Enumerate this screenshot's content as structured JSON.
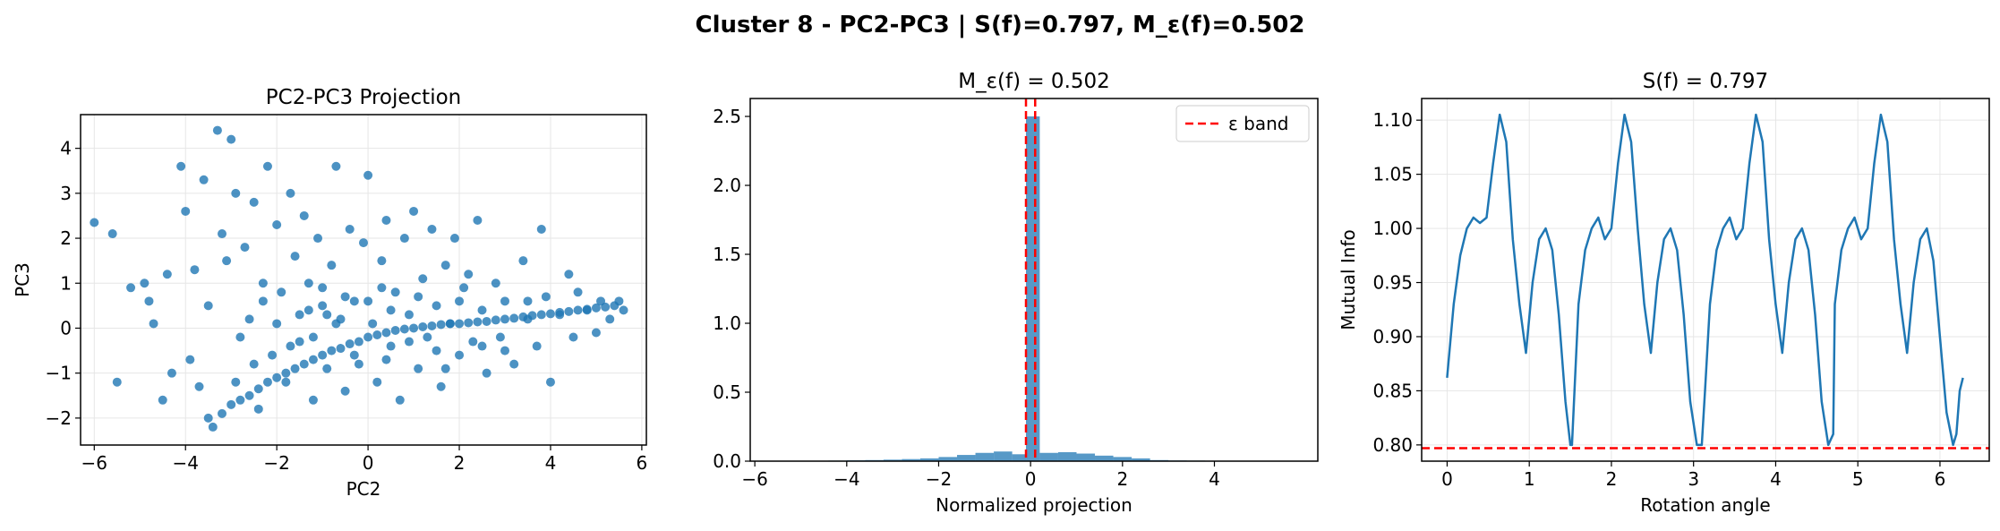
{
  "figure": {
    "suptitle": "Cluster 8 - PC2-PC3 | S(f)=0.797, M_ε(f)=0.502",
    "colors": {
      "primary": "#1f77b4",
      "reference": "#ff0000",
      "grid": "#e6e6e6"
    }
  },
  "chart_data": [
    {
      "type": "scatter",
      "title": "PC2-PC3 Projection",
      "xlabel": "PC2",
      "ylabel": "PC3",
      "xlim": [
        -6.3,
        6.1
      ],
      "ylim": [
        -2.6,
        4.75
      ],
      "xticks": [
        -6,
        -4,
        -2,
        0,
        2,
        4,
        6
      ],
      "yticks": [
        -2,
        -1,
        0,
        1,
        2,
        3,
        4
      ],
      "grid": true,
      "series": [
        {
          "points": [
            [
              -6.0,
              2.35
            ],
            [
              -5.6,
              2.1
            ],
            [
              -5.5,
              -1.2
            ],
            [
              -5.2,
              0.9
            ],
            [
              -4.9,
              1.0
            ],
            [
              -4.8,
              0.6
            ],
            [
              -4.7,
              0.1
            ],
            [
              -4.5,
              -1.6
            ],
            [
              -4.4,
              1.2
            ],
            [
              -4.3,
              -1.0
            ],
            [
              -4.1,
              3.6
            ],
            [
              -4.0,
              2.6
            ],
            [
              -3.9,
              -0.7
            ],
            [
              -3.8,
              1.3
            ],
            [
              -3.7,
              -1.3
            ],
            [
              -3.6,
              3.3
            ],
            [
              -3.5,
              0.5
            ],
            [
              -3.4,
              -2.2
            ],
            [
              -3.3,
              4.4
            ],
            [
              -3.2,
              2.1
            ],
            [
              -3.1,
              1.5
            ],
            [
              -3.0,
              4.2
            ],
            [
              -2.9,
              3.0
            ],
            [
              -2.8,
              -0.2
            ],
            [
              -2.7,
              1.8
            ],
            [
              -2.6,
              0.2
            ],
            [
              -2.5,
              2.8
            ],
            [
              -2.4,
              -1.8
            ],
            [
              -2.3,
              1.0
            ],
            [
              -2.2,
              3.6
            ],
            [
              -2.1,
              -0.6
            ],
            [
              -2.0,
              2.3
            ],
            [
              -1.9,
              0.8
            ],
            [
              -1.8,
              -1.2
            ],
            [
              -1.7,
              3.0
            ],
            [
              -1.6,
              1.6
            ],
            [
              -1.5,
              -0.3
            ],
            [
              -1.4,
              2.5
            ],
            [
              -1.3,
              0.4
            ],
            [
              -1.2,
              -1.6
            ],
            [
              -1.1,
              2.0
            ],
            [
              -1.0,
              0.9
            ],
            [
              -0.9,
              -0.9
            ],
            [
              -0.8,
              1.4
            ],
            [
              -0.7,
              3.6
            ],
            [
              -0.6,
              0.2
            ],
            [
              -0.5,
              -1.4
            ],
            [
              -0.4,
              2.2
            ],
            [
              -0.3,
              0.6
            ],
            [
              -0.2,
              -0.8
            ],
            [
              -0.1,
              1.9
            ],
            [
              0.0,
              3.4
            ],
            [
              0.1,
              0.1
            ],
            [
              0.2,
              -1.2
            ],
            [
              0.3,
              1.5
            ],
            [
              0.4,
              2.4
            ],
            [
              0.5,
              -0.4
            ],
            [
              0.6,
              0.8
            ],
            [
              0.7,
              -1.6
            ],
            [
              0.8,
              2.0
            ],
            [
              0.9,
              0.3
            ],
            [
              1.0,
              2.6
            ],
            [
              1.1,
              -0.9
            ],
            [
              1.2,
              1.1
            ],
            [
              1.3,
              -0.2
            ],
            [
              1.4,
              2.2
            ],
            [
              1.5,
              0.5
            ],
            [
              1.6,
              -1.3
            ],
            [
              1.7,
              1.4
            ],
            [
              1.8,
              0.1
            ],
            [
              1.9,
              2.0
            ],
            [
              2.0,
              -0.6
            ],
            [
              2.1,
              0.9
            ],
            [
              2.2,
              1.2
            ],
            [
              2.3,
              -0.3
            ],
            [
              2.4,
              2.4
            ],
            [
              2.5,
              0.4
            ],
            [
              2.6,
              -1.0
            ],
            [
              2.8,
              1.0
            ],
            [
              2.9,
              -0.2
            ],
            [
              3.0,
              0.6
            ],
            [
              3.2,
              -0.8
            ],
            [
              3.4,
              1.5
            ],
            [
              3.5,
              0.2
            ],
            [
              3.7,
              -0.4
            ],
            [
              3.8,
              2.2
            ],
            [
              3.9,
              0.7
            ],
            [
              4.0,
              -1.2
            ],
            [
              4.2,
              0.3
            ],
            [
              4.4,
              1.2
            ],
            [
              4.5,
              -0.2
            ],
            [
              4.6,
              0.8
            ],
            [
              4.8,
              0.4
            ],
            [
              5.0,
              -0.1
            ],
            [
              5.1,
              0.6
            ],
            [
              5.3,
              0.2
            ],
            [
              5.5,
              0.6
            ],
            [
              5.6,
              0.4
            ],
            [
              -3.5,
              -2.0
            ],
            [
              -3.0,
              -1.7
            ],
            [
              -2.6,
              -1.5
            ],
            [
              -2.2,
              -1.2
            ],
            [
              -1.8,
              -1.0
            ],
            [
              -1.4,
              -0.8
            ],
            [
              -1.0,
              -0.6
            ],
            [
              -0.6,
              -0.45
            ],
            [
              -0.2,
              -0.3
            ],
            [
              0.2,
              -0.15
            ],
            [
              0.6,
              -0.05
            ],
            [
              1.0,
              0.0
            ],
            [
              1.4,
              0.05
            ],
            [
              1.8,
              0.1
            ],
            [
              2.2,
              0.12
            ],
            [
              2.6,
              0.15
            ],
            [
              3.0,
              0.2
            ],
            [
              3.4,
              0.25
            ],
            [
              3.8,
              0.3
            ],
            [
              4.2,
              0.35
            ],
            [
              4.6,
              0.4
            ],
            [
              5.0,
              0.45
            ],
            [
              5.4,
              0.5
            ],
            [
              -3.2,
              -1.9
            ],
            [
              -2.8,
              -1.6
            ],
            [
              -2.4,
              -1.35
            ],
            [
              -2.0,
              -1.1
            ],
            [
              -1.6,
              -0.9
            ],
            [
              -1.2,
              -0.7
            ],
            [
              -0.8,
              -0.5
            ],
            [
              -0.4,
              -0.35
            ],
            [
              0.0,
              -0.2
            ],
            [
              0.4,
              -0.1
            ],
            [
              0.8,
              -0.02
            ],
            [
              1.2,
              0.03
            ],
            [
              1.6,
              0.08
            ],
            [
              2.0,
              0.1
            ],
            [
              2.4,
              0.14
            ],
            [
              2.8,
              0.18
            ],
            [
              3.2,
              0.22
            ],
            [
              3.6,
              0.28
            ],
            [
              4.0,
              0.32
            ],
            [
              4.4,
              0.37
            ],
            [
              4.8,
              0.42
            ],
            [
              5.2,
              0.47
            ],
            [
              -1.5,
              0.3
            ],
            [
              -1.0,
              0.5
            ],
            [
              -0.5,
              0.7
            ],
            [
              0.0,
              0.6
            ],
            [
              0.5,
              0.4
            ],
            [
              -1.2,
              -0.2
            ],
            [
              -0.7,
              0.1
            ],
            [
              -0.3,
              -0.6
            ],
            [
              0.3,
              0.9
            ],
            [
              0.9,
              -0.3
            ],
            [
              1.5,
              -0.5
            ],
            [
              2.0,
              0.6
            ],
            [
              2.5,
              -0.4
            ],
            [
              3.0,
              -0.5
            ],
            [
              3.5,
              0.6
            ],
            [
              -2.5,
              -0.8
            ],
            [
              -2.0,
              0.1
            ],
            [
              -1.7,
              -0.4
            ],
            [
              -2.9,
              -1.2
            ],
            [
              -2.3,
              0.6
            ],
            [
              1.1,
              0.7
            ],
            [
              1.7,
              -0.9
            ],
            [
              0.4,
              -0.7
            ],
            [
              -0.9,
              0.3
            ],
            [
              -1.3,
              1.0
            ]
          ]
        }
      ]
    },
    {
      "type": "bar",
      "title": "M_ε(f) = 0.502",
      "xlabel": "Normalized projection",
      "ylabel": "",
      "xlim": [
        -6.1,
        6.25
      ],
      "ylim": [
        0,
        2.63
      ],
      "xticks": [
        -6,
        -4,
        -2,
        0,
        2,
        4
      ],
      "yticks": [
        0.0,
        0.5,
        1.0,
        1.5,
        2.0,
        2.5
      ],
      "grid": false,
      "bin_edges": [
        -5.2,
        -4.8,
        -4.4,
        -4.0,
        -3.6,
        -3.2,
        -2.8,
        -2.4,
        -2.0,
        -1.6,
        -1.2,
        -0.8,
        -0.4,
        -0.1,
        0.2,
        0.6,
        1.0,
        1.4,
        1.8,
        2.2,
        2.6,
        3.0,
        3.4,
        3.8,
        4.2,
        4.6,
        5.0,
        5.4
      ],
      "values": [
        0.002,
        0.003,
        0.004,
        0.006,
        0.008,
        0.011,
        0.015,
        0.02,
        0.03,
        0.045,
        0.06,
        0.07,
        0.05,
        2.5,
        0.06,
        0.065,
        0.055,
        0.04,
        0.03,
        0.02,
        0.008,
        0.005,
        0.004,
        0.003,
        0.002,
        0.002,
        0.001
      ],
      "reference_lines": [
        {
          "x": -0.1,
          "label": "ε band"
        },
        {
          "x": 0.1,
          "label": "ε band"
        }
      ],
      "legend": {
        "placement": "top-right",
        "entries": [
          "ε band"
        ]
      }
    },
    {
      "type": "line",
      "title": "S(f) = 0.797",
      "xlabel": "Rotation angle",
      "ylabel": "Mutual Info",
      "xlim": [
        -0.31,
        6.6
      ],
      "ylim": [
        0.785,
        1.12
      ],
      "xticks": [
        0,
        1,
        2,
        3,
        4,
        5,
        6
      ],
      "yticks": [
        0.8,
        0.85,
        0.9,
        0.95,
        1.0,
        1.05,
        1.1
      ],
      "grid": true,
      "series": [
        {
          "x": [
            0,
            0.08,
            0.16,
            0.24,
            0.32,
            0.4,
            0.48,
            0.56,
            0.64,
            0.72,
            0.8,
            0.88,
            0.96,
            1.04,
            1.12,
            1.2,
            1.28,
            1.36,
            1.44,
            1.5,
            1.52,
            1.6,
            1.68,
            1.76,
            1.84,
            1.92,
            2.0,
            2.08,
            2.16,
            2.24,
            2.32,
            2.4,
            2.48,
            2.56,
            2.64,
            2.72,
            2.8,
            2.88,
            2.96,
            3.04,
            3.1,
            3.14,
            3.2,
            3.28,
            3.36,
            3.44,
            3.52,
            3.6,
            3.68,
            3.76,
            3.84,
            3.92,
            4.0,
            4.08,
            4.16,
            4.24,
            4.32,
            4.4,
            4.48,
            4.56,
            4.64,
            4.7,
            4.72,
            4.8,
            4.88,
            4.96,
            5.04,
            5.12,
            5.2,
            5.28,
            5.36,
            5.44,
            5.52,
            5.6,
            5.68,
            5.76,
            5.84,
            5.92,
            6.0,
            6.08,
            6.16,
            6.2,
            6.24,
            6.28
          ],
          "y": [
            0.862,
            0.93,
            0.975,
            1.0,
            1.01,
            1.005,
            1.01,
            1.06,
            1.105,
            1.08,
            0.99,
            0.93,
            0.885,
            0.95,
            0.99,
            1.0,
            0.98,
            0.92,
            0.84,
            0.8,
            0.8,
            0.93,
            0.98,
            1.0,
            1.01,
            0.99,
            1.0,
            1.06,
            1.105,
            1.08,
            1.0,
            0.93,
            0.885,
            0.95,
            0.99,
            1.0,
            0.98,
            0.92,
            0.84,
            0.8,
            0.8,
            0.85,
            0.93,
            0.98,
            1.0,
            1.01,
            0.99,
            1.0,
            1.06,
            1.105,
            1.08,
            0.99,
            0.93,
            0.885,
            0.95,
            0.99,
            1.0,
            0.98,
            0.92,
            0.84,
            0.8,
            0.81,
            0.93,
            0.98,
            1.0,
            1.01,
            0.99,
            1.0,
            1.06,
            1.105,
            1.08,
            0.99,
            0.93,
            0.885,
            0.95,
            0.99,
            1.0,
            0.97,
            0.9,
            0.83,
            0.8,
            0.81,
            0.85,
            0.862
          ]
        }
      ],
      "reference_lines": [
        {
          "y": 0.797
        }
      ]
    }
  ]
}
